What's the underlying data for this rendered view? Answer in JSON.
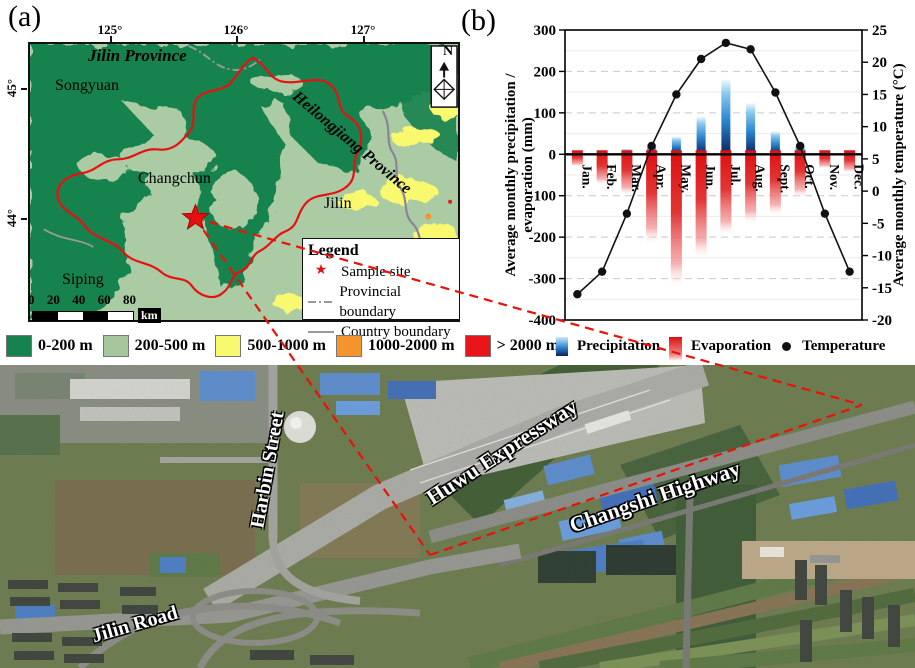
{
  "figure": {
    "panel_a_label": "(a)",
    "panel_b_label": "(b)"
  },
  "map": {
    "lon_ticks": [
      "125°",
      "126°",
      "127°"
    ],
    "lat_ticks": [
      "45°",
      "44°"
    ],
    "north_label": "N",
    "region_labels": {
      "province": "Jilin Province",
      "songyuan": "Songyuan",
      "heilongjiang": "Heilongjiang Province",
      "changchun": "Changchun",
      "jilin": "Jilin",
      "siping": "Siping"
    },
    "legend": {
      "title": "Legend",
      "star_glyph": "★",
      "items": [
        {
          "label": "Sample site"
        },
        {
          "label": "Provincial boundary"
        },
        {
          "label": "Country boundary"
        }
      ]
    },
    "scalebar": {
      "ticks": [
        "0",
        "20",
        "40",
        "60",
        "80"
      ],
      "unit": "km"
    },
    "elevation_legend": [
      {
        "label": "0-200 m",
        "color": "#17824e"
      },
      {
        "label": "200-500 m",
        "color": "#a6c79e"
      },
      {
        "label": "500-1000 m",
        "color": "#f9f96f"
      },
      {
        "label": "1000-2000 m",
        "color": "#f5932f"
      },
      {
        "label": "> 2000 m",
        "color": "#e9151b"
      }
    ],
    "boundary_color": "#e81010",
    "sample_site_color": "#e01010"
  },
  "chart_data": {
    "type": "bar+line",
    "categories": [
      "Jan.",
      "Feb.",
      "Mar.",
      "Apr.",
      "May.",
      "Jun.",
      "Jul.",
      "Aug.",
      "Sept.",
      "Oct.",
      "Nov.",
      "Dec."
    ],
    "series": [
      {
        "name": "Precipitation",
        "type": "bar",
        "axis": "left",
        "values": [
          3,
          5,
          13,
          22,
          42,
          90,
          180,
          123,
          55,
          22,
          10,
          4
        ]
      },
      {
        "name": "Evaporation",
        "type": "bar",
        "axis": "left",
        "values": [
          -30,
          -75,
          -100,
          -220,
          -325,
          -255,
          -200,
          -170,
          -150,
          -105,
          -35,
          -45
        ]
      },
      {
        "name": "Temperature",
        "type": "line",
        "axis": "right",
        "values": [
          -16,
          -12.5,
          -3.5,
          7,
          15,
          20.5,
          23,
          22,
          15.3,
          7,
          -3.5,
          -12.5
        ]
      }
    ],
    "title": "",
    "ylabel_left_line1": "Average monthly precipitation /",
    "ylabel_left_line2": "evaporation (mm)",
    "ylabel_right": "Average monthly temperature (°C)",
    "left_ticks": [
      300,
      200,
      100,
      0,
      -100,
      -200,
      -300,
      -400
    ],
    "right_ticks": [
      25,
      20,
      15,
      10,
      5,
      0,
      -5,
      -10,
      -15,
      -20
    ],
    "ylim_left": [
      -400,
      300
    ],
    "ylim_right": [
      -20,
      25
    ],
    "grid": "dashed horizontal every 100 mm, light solid every 50 mm",
    "legend": [
      "Precipitation",
      "Evaporation",
      "Temperature"
    ],
    "legend_position": "bottom",
    "precipitation_color_top": "#cfe9fb",
    "precipitation_color_bottom": "#0a2260",
    "evaporation_color": "#dd0f0f",
    "temperature_color": "#111111"
  },
  "satellite": {
    "roads": [
      {
        "label": "Harbin Street"
      },
      {
        "label": "Huwu Expressway"
      },
      {
        "label": "Changshi Highway"
      },
      {
        "label": "Jilin Road"
      }
    ],
    "callout_color": "#ea1208"
  }
}
